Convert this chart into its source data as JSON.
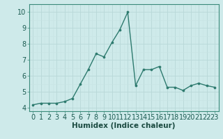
{
  "x": [
    0,
    1,
    2,
    3,
    4,
    5,
    6,
    7,
    8,
    9,
    10,
    11,
    12,
    13,
    14,
    15,
    16,
    17,
    18,
    19,
    20,
    21,
    22,
    23
  ],
  "y": [
    4.2,
    4.3,
    4.3,
    4.3,
    4.4,
    4.6,
    5.5,
    6.4,
    7.4,
    7.2,
    8.1,
    8.9,
    10.0,
    5.4,
    6.4,
    6.4,
    6.6,
    5.3,
    5.3,
    5.1,
    5.4,
    5.55,
    5.4,
    5.3
  ],
  "line_color": "#2d7a6e",
  "marker": "o",
  "markersize": 2.2,
  "linewidth": 1.0,
  "xlabel": "Humidex (Indice chaleur)",
  "xlim": [
    -0.5,
    23.5
  ],
  "ylim": [
    3.8,
    10.5
  ],
  "yticks": [
    4,
    5,
    6,
    7,
    8,
    9,
    10
  ],
  "xticks": [
    0,
    1,
    2,
    3,
    4,
    5,
    6,
    7,
    8,
    9,
    10,
    11,
    12,
    13,
    14,
    15,
    16,
    17,
    18,
    19,
    20,
    21,
    22,
    23
  ],
  "bg_color": "#ceeaea",
  "grid_major_color": "#b8d8d8",
  "grid_minor_color": "#c8e4e4",
  "tick_fontsize": 7,
  "xlabel_fontsize": 7.5,
  "spine_color": "#3a8a7a"
}
